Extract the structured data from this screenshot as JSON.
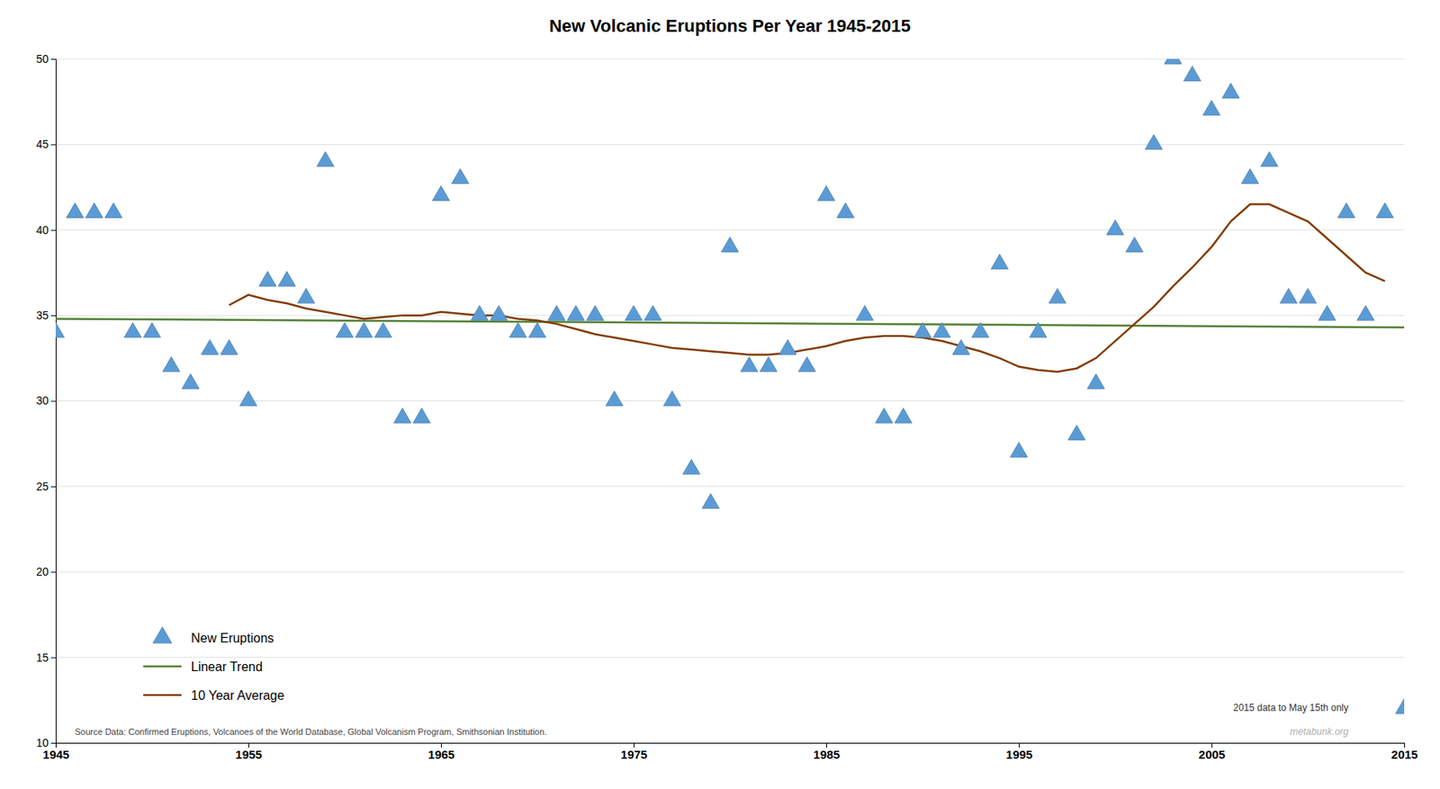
{
  "chart_data": {
    "type": "line",
    "title": "New Volcanic Eruptions Per Year 1945-2015",
    "x": [
      1945,
      1946,
      1947,
      1948,
      1949,
      1950,
      1951,
      1952,
      1953,
      1954,
      1955,
      1956,
      1957,
      1958,
      1959,
      1960,
      1961,
      1962,
      1963,
      1964,
      1965,
      1966,
      1967,
      1968,
      1969,
      1970,
      1971,
      1972,
      1973,
      1974,
      1975,
      1976,
      1977,
      1978,
      1979,
      1980,
      1981,
      1982,
      1983,
      1984,
      1985,
      1986,
      1987,
      1988,
      1989,
      1990,
      1991,
      1992,
      1993,
      1994,
      1995,
      1996,
      1997,
      1998,
      1999,
      2000,
      2001,
      2002,
      2003,
      2004,
      2005,
      2006,
      2007,
      2008,
      2009,
      2010,
      2011,
      2012,
      2013,
      2014,
      2015
    ],
    "series": [
      {
        "name": "New Eruptions",
        "type": "scatter",
        "marker": "triangle",
        "color": "#5B9BD5",
        "values": [
          34,
          41,
          41,
          41,
          34,
          34,
          32,
          31,
          33,
          33,
          30,
          37,
          37,
          36,
          44,
          34,
          34,
          34,
          29,
          29,
          42,
          43,
          35,
          35,
          34,
          34,
          35,
          35,
          35,
          30,
          35,
          35,
          30,
          26,
          24,
          39,
          32,
          32,
          33,
          32,
          42,
          41,
          35,
          29,
          29,
          34,
          34,
          33,
          34,
          38,
          27,
          34,
          36,
          28,
          31,
          40,
          39,
          45,
          50,
          49,
          47,
          48,
          43,
          44,
          36,
          36,
          35,
          41,
          35,
          41,
          12
        ]
      },
      {
        "name": "Linear Trend",
        "type": "line",
        "color": "#538135",
        "x": [
          1945,
          2015
        ],
        "values": [
          34.8,
          34.3
        ]
      },
      {
        "name": "10 Year Average",
        "type": "line",
        "color": "#833C00",
        "x": [
          1954,
          1955,
          1956,
          1957,
          1958,
          1959,
          1960,
          1961,
          1962,
          1963,
          1964,
          1965,
          1966,
          1967,
          1968,
          1969,
          1970,
          1971,
          1972,
          1973,
          1974,
          1975,
          1976,
          1977,
          1978,
          1979,
          1980,
          1981,
          1982,
          1983,
          1984,
          1985,
          1986,
          1987,
          1988,
          1989,
          1990,
          1991,
          1992,
          1993,
          1994,
          1995,
          1996,
          1997,
          1998,
          1999,
          2000,
          2001,
          2002,
          2003,
          2004,
          2005,
          2006,
          2007,
          2008,
          2009,
          2010,
          2011,
          2012,
          2013,
          2014
        ],
        "values": [
          35.6,
          36.2,
          35.9,
          35.7,
          35.4,
          35.2,
          35.0,
          34.8,
          34.9,
          35.0,
          35.0,
          35.2,
          35.1,
          35.0,
          35.0,
          34.8,
          34.7,
          34.5,
          34.2,
          33.9,
          33.7,
          33.5,
          33.3,
          33.1,
          33.0,
          32.9,
          32.8,
          32.7,
          32.7,
          32.8,
          33.0,
          33.2,
          33.5,
          33.7,
          33.8,
          33.8,
          33.7,
          33.5,
          33.2,
          32.9,
          32.5,
          32.0,
          31.8,
          31.7,
          31.9,
          32.5,
          33.5,
          34.5,
          35.5,
          36.7,
          37.8,
          39.0,
          40.5,
          41.5,
          41.5,
          41.0,
          40.5,
          39.5,
          38.5,
          37.5,
          37.0
        ]
      }
    ],
    "xlim": [
      1945,
      2015
    ],
    "ylim": [
      10,
      50
    ],
    "xticks": [
      1945,
      1955,
      1965,
      1975,
      1985,
      1995,
      2005,
      2015
    ],
    "yticks": [
      10,
      15,
      20,
      25,
      30,
      35,
      40,
      45,
      50
    ],
    "grid": true,
    "legend": "lower left",
    "annotations": [
      "Source Data: Confirmed Eruptions, Volcanoes of the World Database, Global Volcanism Program, Smithsonian Institution.",
      "2015 data to May 15th only",
      "metabunk.org"
    ]
  }
}
